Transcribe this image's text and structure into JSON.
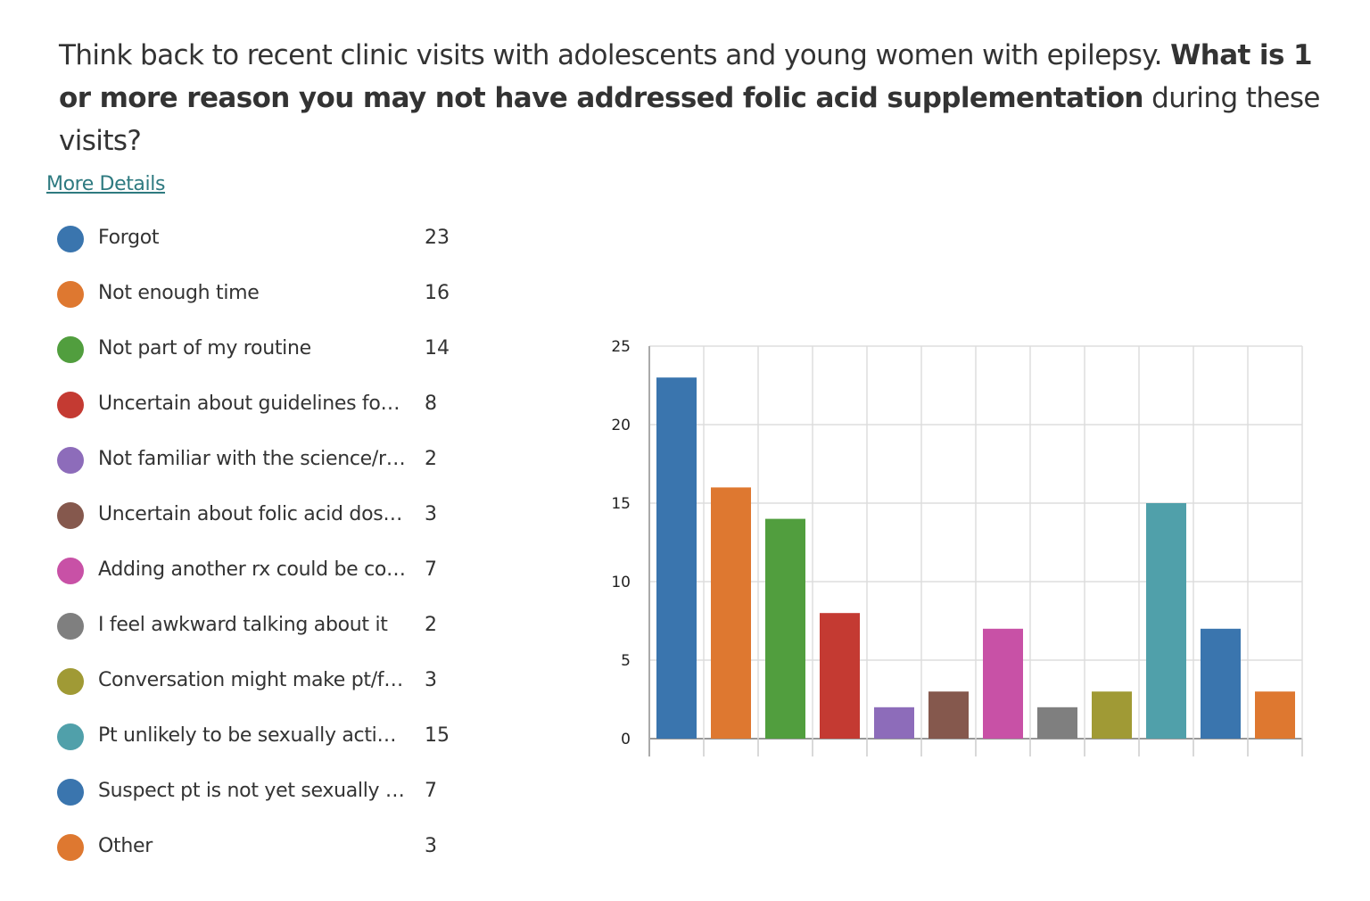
{
  "title": {
    "text_pre": "Think back to recent clinic visits with adolescents and young women with epilepsy. ",
    "text_bold": "What is 1 or more reason you may not have addressed folic acid supplementation",
    "text_post": " during these visits?"
  },
  "more_details": "More Details",
  "legend": [
    {
      "label": "Forgot",
      "count": "23",
      "color": "#3a75ae"
    },
    {
      "label": "Not enough time",
      "count": "16",
      "color": "#de7830"
    },
    {
      "label": "Not part of my routine",
      "count": "14",
      "color": "#519e3e"
    },
    {
      "label": "Uncertain about guidelines for…",
      "count": "8",
      "color": "#c43a32"
    },
    {
      "label": "Not familiar with the science/r…",
      "count": "2",
      "color": "#8d6cba"
    },
    {
      "label": "Uncertain about folic acid dosi…",
      "count": "3",
      "color": "#85584d"
    },
    {
      "label": "Adding another rx could be co…",
      "count": "7",
      "color": "#c851a6"
    },
    {
      "label": "I feel awkward talking about it",
      "count": "2",
      "color": "#7f7f7f"
    },
    {
      "label": "Conversation might make pt/f…",
      "count": "3",
      "color": "#a09a35"
    },
    {
      "label": "Pt unlikely to be sexually activ…",
      "count": "15",
      "color": "#50a0aa"
    },
    {
      "label": "Suspect pt is not yet sexually …",
      "count": "7",
      "color": "#3a75ae"
    },
    {
      "label": "Other",
      "count": "3",
      "color": "#de7830"
    }
  ],
  "chart_data": {
    "type": "bar",
    "categories": [
      "Forgot",
      "Not enough time",
      "Not part of my routine",
      "Uncertain about guidelines for…",
      "Not familiar with the science/r…",
      "Uncertain about folic acid dosi…",
      "Adding another rx could be co…",
      "I feel awkward talking about it",
      "Conversation might make pt/f…",
      "Pt unlikely to be sexually activ…",
      "Suspect pt is not yet sexually …",
      "Other"
    ],
    "values": [
      23,
      16,
      14,
      8,
      2,
      3,
      7,
      2,
      3,
      15,
      7,
      3
    ],
    "colors": [
      "#3a75ae",
      "#de7830",
      "#519e3e",
      "#c43a32",
      "#8d6cba",
      "#85584d",
      "#c851a6",
      "#7f7f7f",
      "#a09a35",
      "#50a0aa",
      "#3a75ae",
      "#de7830"
    ],
    "ylim": [
      0,
      25
    ],
    "yticks": [
      "0",
      "5",
      "10",
      "15",
      "20",
      "25"
    ],
    "grid": true,
    "title": "",
    "xlabel": "",
    "ylabel": ""
  }
}
